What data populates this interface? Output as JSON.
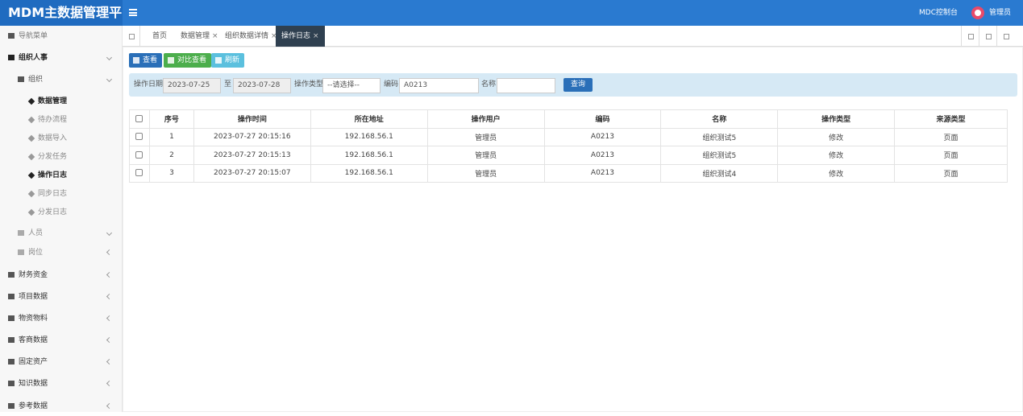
{
  "header": {
    "logo": "MDM主数据管理平台",
    "console": "MDC控制台",
    "user": "管理员"
  },
  "sidebar": {
    "title": "导航菜单",
    "items": [
      "组织人事",
      "组织",
      "数据管理",
      "待办流程",
      "数据导入",
      "分发任务",
      "操作日志",
      "同步日志",
      "分发日志",
      "人员",
      "岗位",
      "财务资金",
      "项目数据",
      "物资物料",
      "客商数据",
      "固定资产",
      "知识数据",
      "参考数据"
    ]
  },
  "tabs": [
    "首页",
    "数据管理",
    "组织数据详情",
    "操作日志"
  ],
  "toolbar": {
    "buttons": [
      "查看",
      "对比查看",
      "刷新"
    ]
  },
  "filter": {
    "date_label": "操作日期",
    "date_from": "2023-07-25",
    "to": "至",
    "date_to": "2023-07-28",
    "type_label": "操作类型",
    "type_select": "--请选择--",
    "code_label": "编码",
    "code_value": "A0213",
    "name_label": "名称",
    "query": "查询"
  },
  "table": {
    "columns": [
      "序号",
      "操作时间",
      "所在地址",
      "操作用户",
      "编码",
      "名称",
      "操作类型",
      "来源类型"
    ],
    "rows": [
      [
        1,
        "2023-07-27 20:15:16",
        "192.168.56.1",
        "管理员",
        "A0213",
        "组织测试5",
        "修改",
        "页面"
      ],
      [
        2,
        "2023-07-27 20:15:13",
        "192.168.56.1",
        "管理员",
        "A0213",
        "组织测试5",
        "修改",
        "页面"
      ],
      [
        3,
        "2023-07-27 20:15:07",
        "192.168.56.1",
        "管理员",
        "A0213",
        "组织测试4",
        "修改",
        "页面"
      ]
    ]
  }
}
